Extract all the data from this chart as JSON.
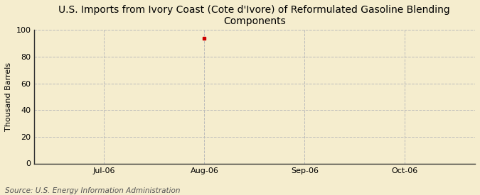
{
  "title": "U.S. Imports from Ivory Coast (Cote d'Ivore) of Reformulated Gasoline Blending\nComponents",
  "ylabel": "Thousand Barrels",
  "source": "Source: U.S. Energy Information Administration",
  "background_color": "#f5edce",
  "plot_bg_color": "#f5edce",
  "ylim": [
    0,
    100
  ],
  "yticks": [
    0,
    20,
    40,
    60,
    80,
    100
  ],
  "xtick_labels": [
    "Jul-06",
    "Aug-06",
    "Sep-06",
    "Oct-06"
  ],
  "xtick_positions": [
    1,
    2,
    3,
    4
  ],
  "xlim": [
    0.3,
    4.7
  ],
  "data_x": [
    2
  ],
  "data_y": [
    94
  ],
  "data_color": "#cc0000",
  "marker": "s",
  "marker_size": 3,
  "title_fontsize": 10,
  "ylabel_fontsize": 8,
  "tick_fontsize": 8,
  "source_fontsize": 7.5,
  "grid_color": "#bbbbbb",
  "grid_style": "--",
  "grid_alpha": 1.0,
  "grid_linewidth": 0.7
}
